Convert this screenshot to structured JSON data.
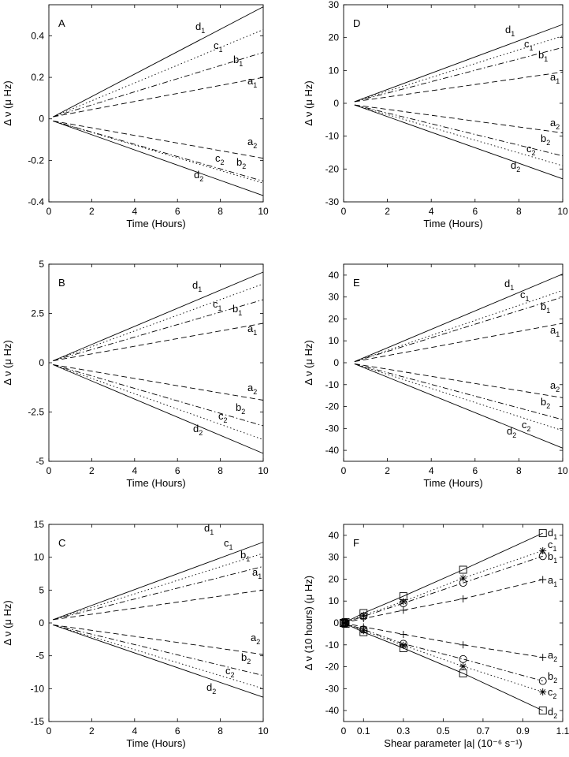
{
  "chart_data": [
    {
      "type": "line",
      "panel": "A",
      "xlabel": "Time (Hours)",
      "ylabel": "Δ ν (μ Hz)",
      "xlim": [
        0,
        10
      ],
      "ylim": [
        -0.4,
        0.55
      ],
      "xticks": [
        0,
        2,
        4,
        6,
        8,
        10
      ],
      "yticks": [
        -0.4,
        -0.2,
        0,
        0.2,
        0.4
      ],
      "ytick_labels": [
        "-0.4",
        "-0.2",
        "0",
        "0.2",
        "0.4"
      ],
      "x": [
        0.2,
        10
      ],
      "series": [
        {
          "name": "d1",
          "style": "solid",
          "values": [
            0.01,
            0.54
          ]
        },
        {
          "name": "c1",
          "style": "dotted",
          "values": [
            0.01,
            0.43
          ]
        },
        {
          "name": "b1",
          "style": "dashdot",
          "values": [
            0.01,
            0.32
          ]
        },
        {
          "name": "a1",
          "style": "dashed",
          "values": [
            0.01,
            0.2
          ]
        },
        {
          "name": "a2",
          "style": "dashed",
          "values": [
            -0.01,
            -0.19
          ]
        },
        {
          "name": "b2",
          "style": "dashdot",
          "values": [
            -0.01,
            -0.3
          ]
        },
        {
          "name": "c2",
          "style": "dotted",
          "values": [
            -0.01,
            -0.31
          ]
        },
        {
          "name": "d2",
          "style": "solid",
          "values": [
            -0.01,
            -0.37
          ]
        }
      ]
    },
    {
      "type": "line",
      "panel": "D",
      "xlabel": "Time (Hours)",
      "ylabel": "Δ ν (μ Hz)",
      "xlim": [
        0,
        10
      ],
      "ylim": [
        -30,
        30
      ],
      "xticks": [
        0,
        2,
        4,
        6,
        8,
        10
      ],
      "yticks": [
        -30,
        -20,
        -10,
        0,
        10,
        20,
        30
      ],
      "ytick_labels": [
        "-30",
        "-20",
        "-10",
        "0",
        "10",
        "20",
        "30"
      ],
      "x": [
        0.5,
        10
      ],
      "series": [
        {
          "name": "d1",
          "style": "solid",
          "values": [
            0.5,
            24
          ]
        },
        {
          "name": "c1",
          "style": "dotted",
          "values": [
            0.5,
            20.5
          ]
        },
        {
          "name": "b1",
          "style": "dashdot",
          "values": [
            0.5,
            17
          ]
        },
        {
          "name": "a1",
          "style": "dashed",
          "values": [
            0.5,
            9.5
          ]
        },
        {
          "name": "a2",
          "style": "dashed",
          "values": [
            -0.5,
            -9
          ]
        },
        {
          "name": "b2",
          "style": "dashdot",
          "values": [
            -0.5,
            -16
          ]
        },
        {
          "name": "c2",
          "style": "dotted",
          "values": [
            -0.5,
            -19
          ]
        },
        {
          "name": "d2",
          "style": "solid",
          "values": [
            -0.5,
            -23
          ]
        }
      ]
    },
    {
      "type": "line",
      "panel": "B",
      "xlabel": "Time (Hours)",
      "ylabel": "Δ ν (μ Hz)",
      "xlim": [
        0,
        10
      ],
      "ylim": [
        -5,
        5
      ],
      "xticks": [
        0,
        2,
        4,
        6,
        8,
        10
      ],
      "yticks": [
        -5,
        -2.5,
        0,
        2.5,
        5
      ],
      "ytick_labels": [
        "-5",
        "-2.5",
        "0",
        "2.5",
        "5"
      ],
      "x": [
        0.2,
        10
      ],
      "series": [
        {
          "name": "d1",
          "style": "solid",
          "values": [
            0.1,
            4.6
          ]
        },
        {
          "name": "c1",
          "style": "dotted",
          "values": [
            0.1,
            4.0
          ]
        },
        {
          "name": "b1",
          "style": "dashdot",
          "values": [
            0.1,
            3.2
          ]
        },
        {
          "name": "a1",
          "style": "dashed",
          "values": [
            0.1,
            2.0
          ]
        },
        {
          "name": "a2",
          "style": "dashed",
          "values": [
            -0.1,
            -1.9
          ]
        },
        {
          "name": "b2",
          "style": "dashdot",
          "values": [
            -0.1,
            -3.2
          ]
        },
        {
          "name": "c2",
          "style": "dotted",
          "values": [
            -0.1,
            -3.9
          ]
        },
        {
          "name": "d2",
          "style": "solid",
          "values": [
            -0.1,
            -4.6
          ]
        }
      ]
    },
    {
      "type": "line",
      "panel": "E",
      "xlabel": "Time (Hours)",
      "ylabel": "Δ ν (μ Hz)",
      "xlim": [
        0,
        10
      ],
      "ylim": [
        -45,
        45
      ],
      "xticks": [
        0,
        2,
        4,
        6,
        8,
        10
      ],
      "yticks": [
        -40,
        -30,
        -20,
        -10,
        0,
        10,
        20,
        30,
        40
      ],
      "ytick_labels": [
        "-40",
        "-30",
        "-20",
        "-10",
        "0",
        "10",
        "20",
        "30",
        "40"
      ],
      "x": [
        0.5,
        10
      ],
      "series": [
        {
          "name": "d1",
          "style": "solid",
          "values": [
            0.5,
            40.5
          ]
        },
        {
          "name": "c1",
          "style": "dotted",
          "values": [
            0.5,
            33
          ]
        },
        {
          "name": "b1",
          "style": "dashdot",
          "values": [
            0.5,
            30
          ]
        },
        {
          "name": "a1",
          "style": "dashed",
          "values": [
            0.5,
            18
          ]
        },
        {
          "name": "a2",
          "style": "dashed",
          "values": [
            -0.5,
            -16
          ]
        },
        {
          "name": "b2",
          "style": "dashdot",
          "values": [
            -0.5,
            -26
          ]
        },
        {
          "name": "c2",
          "style": "dotted",
          "values": [
            -0.5,
            -31
          ]
        },
        {
          "name": "d2",
          "style": "solid",
          "values": [
            -0.5,
            -39
          ]
        }
      ]
    },
    {
      "type": "line",
      "panel": "C",
      "xlabel": "Time (Hours)",
      "ylabel": "Δ ν (μ Hz)",
      "xlim": [
        0,
        10
      ],
      "ylim": [
        -15,
        15
      ],
      "xticks": [
        0,
        2,
        4,
        6,
        8,
        10
      ],
      "yticks": [
        -15,
        -10,
        -5,
        0,
        5,
        10,
        15
      ],
      "ytick_labels": [
        "-15",
        "-10",
        "-5",
        "0",
        "5",
        "10",
        "15"
      ],
      "x": [
        0.2,
        10
      ],
      "series": [
        {
          "name": "d1",
          "style": "solid",
          "values": [
            0.5,
            12.3
          ]
        },
        {
          "name": "c1",
          "style": "dotted",
          "values": [
            0.5,
            10.6
          ]
        },
        {
          "name": "b1",
          "style": "dashdot",
          "values": [
            0.5,
            8.6
          ]
        },
        {
          "name": "a1",
          "style": "dashed",
          "values": [
            0.5,
            5.0
          ]
        },
        {
          "name": "a2",
          "style": "dashed",
          "values": [
            -0.3,
            -4.8
          ]
        },
        {
          "name": "b2",
          "style": "dashdot",
          "values": [
            -0.3,
            -8.0
          ]
        },
        {
          "name": "c2",
          "style": "dotted",
          "values": [
            -0.3,
            -10.0
          ]
        },
        {
          "name": "d2",
          "style": "solid",
          "values": [
            -0.3,
            -11.3
          ]
        }
      ]
    },
    {
      "type": "line",
      "panel": "F",
      "xlabel": "Shear parameter |a|  (10⁻⁶ s⁻¹)",
      "ylabel": "Δ ν (10 hours) (μ Hz)",
      "xlim": [
        0,
        1.1
      ],
      "ylim": [
        -45,
        45
      ],
      "xticks": [
        0,
        0.1,
        0.3,
        0.5,
        0.7,
        0.9,
        1.1
      ],
      "xtick_labels": [
        "0",
        "0.1",
        "0.3",
        "0.5",
        "0.7",
        "0.9",
        "1.1"
      ],
      "yticks": [
        -40,
        -30,
        -20,
        -10,
        0,
        10,
        20,
        30,
        40
      ],
      "ytick_labels": [
        "-40",
        "-30",
        "-20",
        "-10",
        "0",
        "10",
        "20",
        "30",
        "40"
      ],
      "x": [
        0,
        0.01,
        0.1,
        0.3,
        0.6,
        1.0
      ],
      "series": [
        {
          "name": "d1",
          "style": "solid",
          "marker": "square",
          "values": [
            0,
            0.4,
            4.5,
            12.2,
            24.3,
            41
          ]
        },
        {
          "name": "c1",
          "style": "dotted",
          "marker": "star",
          "values": [
            0,
            0.3,
            3.5,
            9.8,
            20.5,
            33
          ]
        },
        {
          "name": "b1",
          "style": "dashdot",
          "marker": "circle",
          "values": [
            0,
            0.3,
            3.0,
            9.0,
            18.3,
            30.5
          ]
        },
        {
          "name": "a1",
          "style": "dashed",
          "marker": "plus",
          "values": [
            0,
            0.2,
            2.0,
            5.8,
            11.0,
            19.8
          ]
        },
        {
          "name": "a2",
          "style": "dashed",
          "marker": "plus",
          "values": [
            0,
            -0.2,
            -1.8,
            -5.2,
            -10.0,
            -15.7
          ]
        },
        {
          "name": "b2",
          "style": "dashdot",
          "marker": "circle",
          "values": [
            0,
            -0.3,
            -3.0,
            -9.5,
            -16.5,
            -26.5
          ]
        },
        {
          "name": "c2",
          "style": "dotted",
          "marker": "star",
          "values": [
            0,
            -0.3,
            -3.5,
            -10.2,
            -19.8,
            -31.5
          ]
        },
        {
          "name": "d2",
          "style": "solid",
          "marker": "square",
          "values": [
            0,
            -0.4,
            -4.2,
            -11.5,
            -23.0,
            -40
          ]
        }
      ]
    }
  ]
}
